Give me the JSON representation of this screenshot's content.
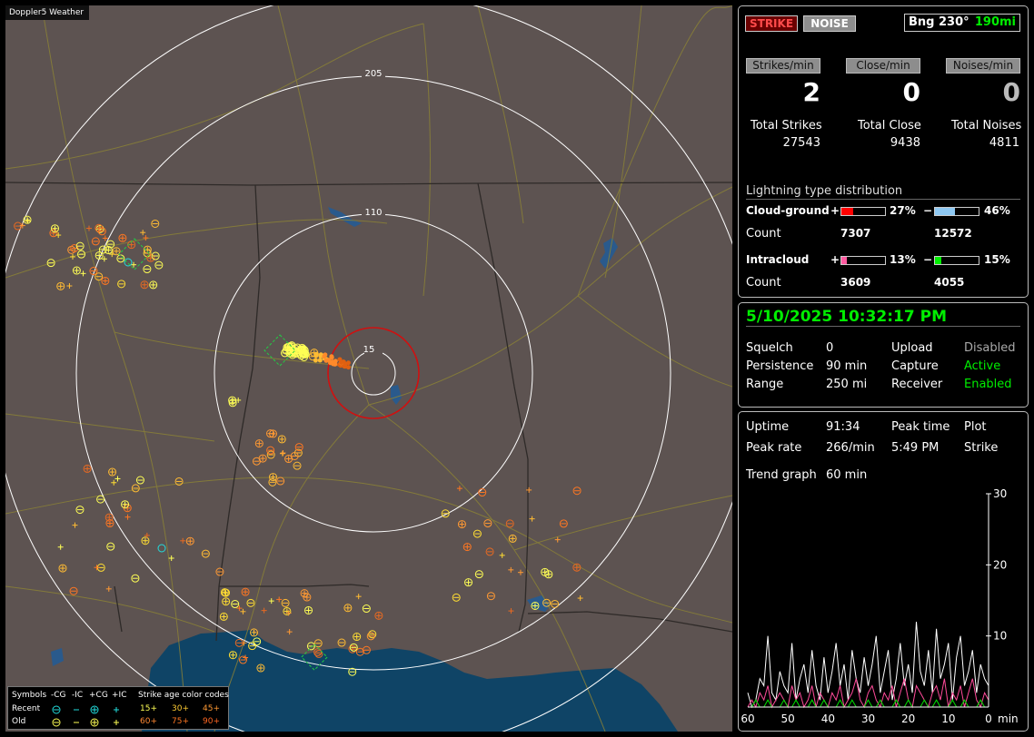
{
  "map": {
    "title": "Doppler5 Weather",
    "rings": [
      "205",
      "110",
      "15"
    ],
    "legend": {
      "symbols_label": "Symbols",
      "col_neg_cg": "-CG",
      "col_neg_ic": "-IC",
      "col_pos_cg": "+CG",
      "col_pos_ic": "+IC",
      "age_title": "Strike age color codes",
      "recent_label": "Recent",
      "old_label": "Old",
      "recent_ages": [
        "15+",
        "30+",
        "45+"
      ],
      "old_ages": [
        "60+",
        "75+",
        "90+"
      ]
    }
  },
  "status": {
    "strike_button": "STRIKE",
    "noise_button": "NOISE",
    "bearing_label": "Bng 230°",
    "bearing_distance": "190mi"
  },
  "rates": {
    "strikes_label": "Strikes/min",
    "close_label": "Close/min",
    "noises_label": "Noises/min",
    "strikes_value": "2",
    "close_value": "0",
    "noises_value": "0"
  },
  "totals": {
    "strikes_label": "Total Strikes",
    "strikes_value": "27543",
    "close_label": "Total Close",
    "close_value": "9438",
    "noises_label": "Total Noises",
    "noises_value": "4811"
  },
  "distribution": {
    "title": "Lightning type distribution",
    "cg_label": "Cloud-ground",
    "ic_label": "Intracloud",
    "count_label": "Count",
    "plus": "+",
    "minus": "−",
    "cg_pos_pct_text": "27%",
    "cg_neg_pct_text": "46%",
    "cg_pos_count": "7307",
    "cg_neg_count": "12572",
    "ic_pos_pct_text": "13%",
    "ic_neg_pct_text": "15%",
    "ic_pos_count": "3609",
    "ic_neg_count": "4055",
    "cg_pos_fraction": 0.27,
    "cg_neg_fraction": 0.46,
    "ic_pos_fraction": 0.13,
    "ic_neg_fraction": 0.15,
    "colors": {
      "cg_pos": "#ff0000",
      "cg_neg": "#8ec8f2",
      "ic_pos": "#ff5aa0",
      "ic_neg": "#00ee00"
    }
  },
  "clock": {
    "datetime": "5/10/2025 10:32:17 PM",
    "squelch_label": "Squelch",
    "squelch_value": "0",
    "persistence_label": "Persistence",
    "persistence_value": "90 min",
    "range_label": "Range",
    "range_value": "250 mi",
    "upload_label": "Upload",
    "upload_value": "Disabled",
    "capture_label": "Capture",
    "capture_value": "Active",
    "receiver_label": "Receiver",
    "receiver_value": "Enabled"
  },
  "stats": {
    "uptime_label": "Uptime",
    "uptime_value": "91:34",
    "peak_time_label": "Peak time",
    "plot_label": "Plot",
    "peak_rate_label": "Peak rate",
    "peak_rate_value": "266/min",
    "peak_time_value": "5:49 PM",
    "plot_value": "Strike",
    "trend_label": "Trend graph",
    "trend_value": "60 min"
  },
  "chart_data": {
    "type": "line",
    "x_ticks": [
      "60",
      "50",
      "40",
      "30",
      "20",
      "10",
      "0"
    ],
    "x_unit": "min",
    "y_ticks": [
      "10",
      "20",
      "30"
    ],
    "ylim": [
      0,
      30
    ],
    "xlim": [
      60,
      0
    ],
    "series_colors": [
      "#ffffff",
      "#ff4b9a",
      "#00dd00"
    ],
    "series": [
      {
        "values": [
          2,
          0,
          1,
          4,
          3,
          10,
          2,
          1,
          5,
          3,
          2,
          9,
          1,
          4,
          6,
          2,
          8,
          3,
          1,
          7,
          2,
          5,
          9,
          3,
          6,
          1,
          8,
          4,
          2,
          7,
          3,
          6,
          10,
          2,
          5,
          8,
          1,
          4,
          9,
          3,
          6,
          2,
          12,
          5,
          3,
          8,
          2,
          11,
          4,
          6,
          9,
          1,
          7,
          10,
          3,
          5,
          8,
          2,
          6,
          4,
          3
        ]
      },
      {
        "values": [
          0,
          1,
          0,
          2,
          1,
          3,
          0,
          1,
          2,
          1,
          0,
          3,
          1,
          2,
          0,
          1,
          3,
          0,
          2,
          1,
          0,
          2,
          1,
          3,
          0,
          1,
          2,
          4,
          1,
          0,
          2,
          3,
          1,
          0,
          2,
          1,
          3,
          0,
          2,
          4,
          1,
          0,
          3,
          2,
          1,
          0,
          2,
          3,
          1,
          4,
          0,
          2,
          1,
          3,
          0,
          2,
          4,
          1,
          0,
          2,
          1
        ]
      },
      {
        "values": [
          0,
          0,
          1,
          0,
          0,
          1,
          0,
          0,
          0,
          1,
          0,
          0,
          1,
          0,
          0,
          0,
          1,
          0,
          0,
          1,
          0,
          0,
          0,
          1,
          0,
          0,
          1,
          0,
          0,
          0,
          1,
          0,
          0,
          1,
          0,
          0,
          0,
          1,
          0,
          0,
          1,
          0,
          0,
          0,
          1,
          0,
          0,
          1,
          0,
          0,
          0,
          1,
          0,
          0,
          1,
          0,
          0,
          0,
          1,
          0,
          0
        ]
      }
    ]
  }
}
